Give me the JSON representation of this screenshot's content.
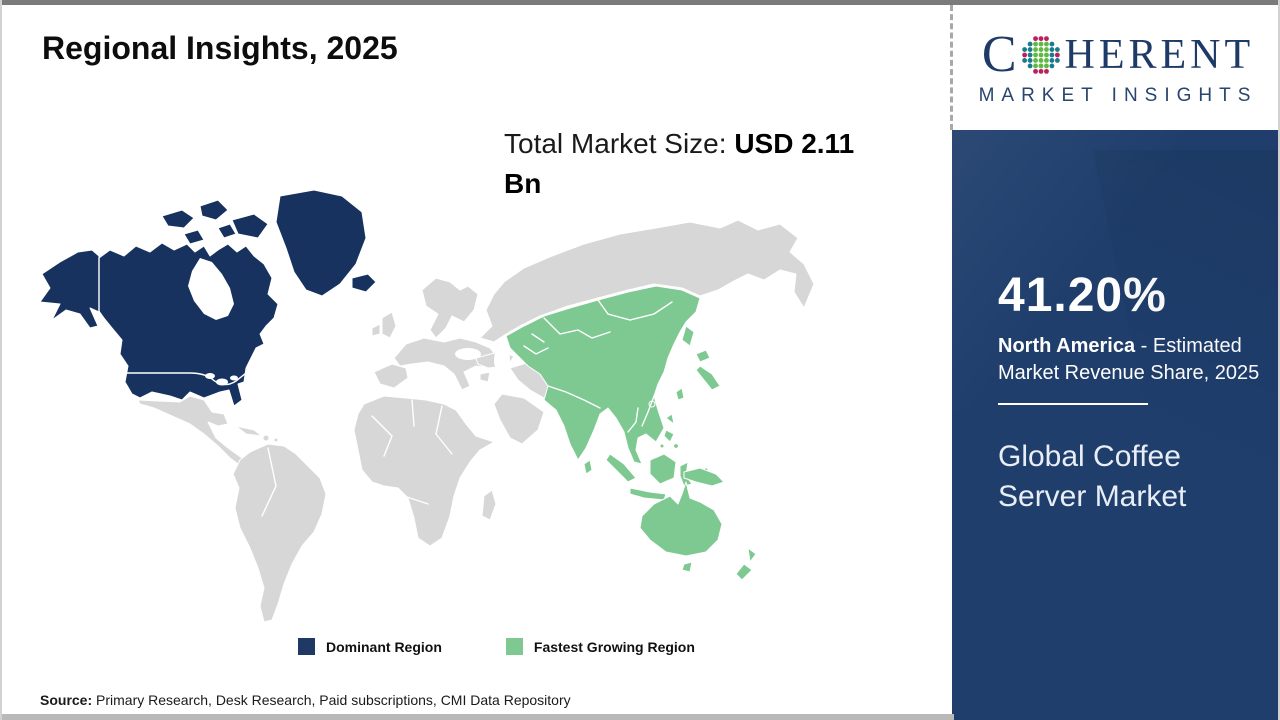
{
  "header": {
    "title": "Regional Insights, 2025"
  },
  "market_size": {
    "label": "Total Market Size: ",
    "value": "USD 2.11 Bn"
  },
  "logo": {
    "prefix": "C",
    "suffix": "HERENT",
    "subtitle": "MARKET INSIGHTS",
    "icon": "dotted-globe-icon",
    "text_color": "#1e3a67",
    "dot_colors": {
      "teal": "#1b7b8a",
      "green": "#5fb944",
      "pink": "#bb1f5e"
    }
  },
  "sidebar": {
    "bg_color": "#1f3e6c",
    "share_value": "41.20%",
    "share_region": "North America",
    "share_rest": " - Estimated Market Revenue Share, 2025",
    "market_name": "Global Coffee Server Market"
  },
  "legend": {
    "items": [
      {
        "label": "Dominant Region",
        "color": "#1f3864"
      },
      {
        "label": "Fastest Growing Region",
        "color": "#7dc991"
      }
    ]
  },
  "source": {
    "label": "Source:",
    "text": " Primary Research, Desk Research, Paid subscriptions, CMI Data Repository"
  },
  "map": {
    "colors": {
      "dominant": "#17325e",
      "growing": "#7dc991",
      "other": "#d7d7d7",
      "border": "#ffffff"
    }
  },
  "chart_data": {
    "type": "choropleth_map",
    "title": "Regional Insights, 2025",
    "market": "Global Coffee Server Market",
    "total_market_size_2025": "USD 2.11 Bn",
    "legend": [
      "Dominant Region",
      "Fastest Growing Region"
    ],
    "regions": [
      {
        "name": "North America",
        "classification": "Dominant Region",
        "estimated_market_revenue_share_2025_pct": 41.2
      },
      {
        "name": "Asia Pacific",
        "classification": "Fastest Growing Region",
        "estimated_market_revenue_share_2025_pct": null
      }
    ],
    "source": "Primary Research, Desk Research, Paid subscriptions, CMI Data Repository"
  }
}
